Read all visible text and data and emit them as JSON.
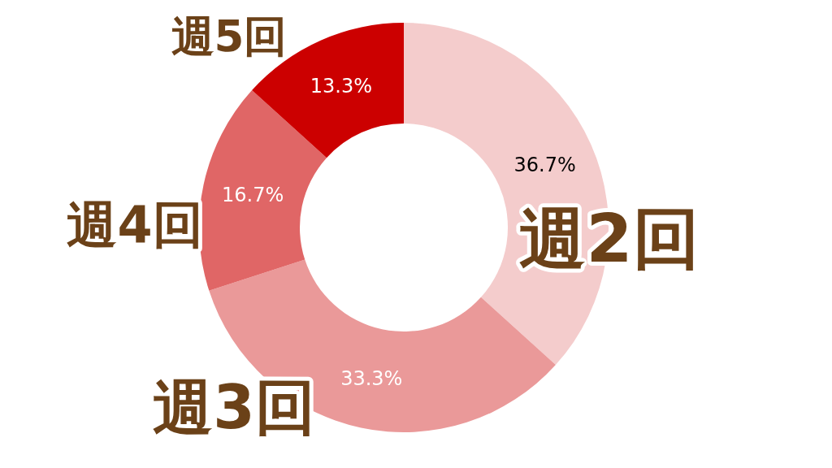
{
  "chart_data": {
    "type": "donut",
    "categories": [
      "週2回",
      "週3回",
      "週4回",
      "週5回"
    ],
    "values": [
      36.7,
      33.3,
      16.7,
      13.3
    ],
    "colors": [
      "#f4cccc",
      "#ea9999",
      "#e06666",
      "#cc0000"
    ],
    "value_labels": [
      "36.7%",
      "33.3%",
      "16.7%",
      "13.3%"
    ]
  }
}
